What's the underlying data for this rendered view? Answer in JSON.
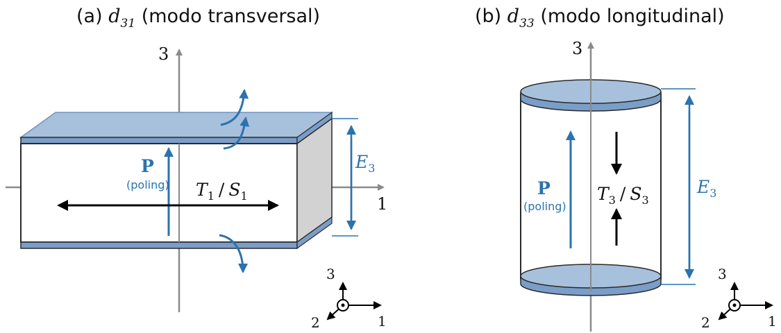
{
  "panel_a": {
    "title_prefix": "(a) ",
    "title_sym": "d",
    "title_sub": "31",
    "title_suffix": " (modo transversal)",
    "axis_3": "3",
    "axis_1": "1",
    "polarization": "P",
    "poling": "(poling)",
    "field_sym": "E",
    "field_sub": "3",
    "stress_T": "T",
    "stress_T_sub": "1",
    "slash": "/",
    "stress_S": "S",
    "stress_S_sub": "1",
    "triad": {
      "x": "1",
      "y": "2",
      "z": "3"
    }
  },
  "panel_b": {
    "title_prefix": "(b) ",
    "title_sym": "d",
    "title_sub": "33",
    "title_suffix": " (modo longitudinal)",
    "axis_3": "3",
    "polarization": "P",
    "poling": "(poling)",
    "field_sym": "E",
    "field_sub": "3",
    "stress_T": "T",
    "stress_T_sub": "3",
    "slash": "/",
    "stress_S": "S",
    "stress_S_sub": "3",
    "triad": {
      "x": "1",
      "y": "2",
      "z": "3"
    }
  },
  "colors": {
    "electrode": "#a7c0dc",
    "electrode_edge": "#6d94be",
    "accent_blue": "#2a73ae",
    "axis_gray": "#8a8a8a",
    "side_face": "#d2d2d2"
  }
}
